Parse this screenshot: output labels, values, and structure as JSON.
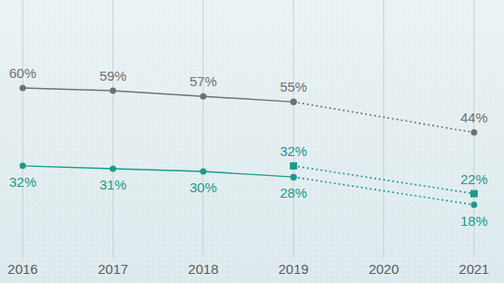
{
  "chart_data": {
    "type": "line",
    "x": [
      2016,
      2017,
      2018,
      2019,
      2021
    ],
    "xlim": [
      2016,
      2021
    ],
    "xticks": [
      2016,
      2017,
      2018,
      2019,
      2020,
      2021
    ],
    "ylim": [
      0,
      90
    ],
    "grid": true,
    "tick_labels": "x",
    "data_labels": true,
    "series": [
      {
        "color": "#707070",
        "marker": "circle",
        "line_style": "solid",
        "values": [
          60,
          59,
          57,
          55,
          null
        ],
        "value_labels": [
          "60%",
          "59%",
          "57%",
          "55%",
          null
        ]
      },
      {
        "color": "#707070",
        "marker": "circle",
        "line_style": "dotted",
        "values": [
          null,
          null,
          null,
          55,
          44
        ],
        "value_labels": [
          null,
          null,
          null,
          null,
          "44%"
        ]
      },
      {
        "color": "#1a9a8a",
        "marker": "circle",
        "line_style": "solid",
        "values": [
          32,
          31,
          30,
          28,
          null
        ],
        "value_labels": [
          "32%",
          "31%",
          "30%",
          "28%",
          null
        ]
      },
      {
        "color": "#1a9a8a",
        "marker": "circle",
        "line_style": "dotted",
        "values": [
          null,
          null,
          null,
          28,
          18
        ],
        "value_labels": [
          null,
          null,
          null,
          null,
          "18%"
        ]
      },
      {
        "color": "#1a9a8a",
        "marker": "square",
        "line_style": "dotted",
        "values": [
          null,
          null,
          null,
          32,
          22
        ],
        "value_labels": [
          null,
          null,
          null,
          "32%",
          "22%"
        ]
      }
    ]
  }
}
